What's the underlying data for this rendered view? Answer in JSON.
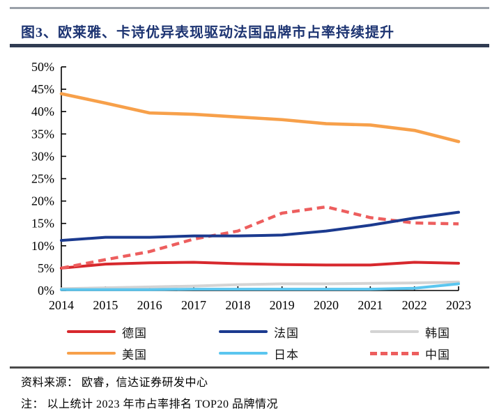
{
  "header": {
    "title": "图3、欧莱雅、卡诗优异表现驱动法国品牌市占率持续提升"
  },
  "footer": {
    "source": "资料来源：  欧睿，信达证券研发中心",
    "note": "注：  以上统计 2023 年市占率排名 TOP20 品牌情况"
  },
  "colors": {
    "title_navy": "#1d3472",
    "axis_black": "#000000",
    "germany_red": "#d7282d",
    "france_navy": "#1b3a8f",
    "korea_gray": "#d4d4d4",
    "usa_orange": "#f7a04a",
    "japan_lightblue": "#5bc6ef",
    "china_salmon": "#ed5e5e"
  },
  "chart_data": {
    "type": "line",
    "title": "图3、欧莱雅、卡诗优异表现驱动法国品牌市占率持续提升",
    "xlabel": "",
    "ylabel": "",
    "ylim": [
      0,
      50
    ],
    "ytick_step": 5,
    "yticks": [
      "0%",
      "5%",
      "10%",
      "15%",
      "20%",
      "25%",
      "30%",
      "35%",
      "40%",
      "45%",
      "50%"
    ],
    "grid": false,
    "legend_position": "bottom",
    "categories": [
      "2014",
      "2015",
      "2016",
      "2017",
      "2018",
      "2019",
      "2020",
      "2021",
      "2022",
      "2023"
    ],
    "series": [
      {
        "key": "germany",
        "name": "德国",
        "color": "#d7282d",
        "style": "solid",
        "values": [
          5.0,
          5.9,
          6.2,
          6.3,
          6.0,
          5.8,
          5.7,
          5.7,
          6.3,
          6.1
        ]
      },
      {
        "key": "france",
        "name": "法国",
        "color": "#1b3a8f",
        "style": "solid",
        "values": [
          11.2,
          11.9,
          11.9,
          12.2,
          12.2,
          12.4,
          13.3,
          14.6,
          16.2,
          17.5
        ]
      },
      {
        "key": "korea",
        "name": "韩国",
        "color": "#d4d4d4",
        "style": "solid",
        "values": [
          0.4,
          0.6,
          0.8,
          1.0,
          1.3,
          1.5,
          1.5,
          1.6,
          1.7,
          1.9
        ]
      },
      {
        "key": "usa",
        "name": "美国",
        "color": "#f7a04a",
        "style": "solid",
        "values": [
          44.0,
          41.9,
          39.7,
          39.4,
          38.8,
          38.2,
          37.3,
          37.0,
          35.8,
          33.3
        ]
      },
      {
        "key": "japan",
        "name": "日本",
        "color": "#5bc6ef",
        "style": "solid",
        "values": [
          0.2,
          0.2,
          0.2,
          0.3,
          0.3,
          0.3,
          0.3,
          0.3,
          0.5,
          1.5
        ]
      },
      {
        "key": "china",
        "name": "中国",
        "color": "#ed5e5e",
        "style": "dashed",
        "values": [
          5.0,
          6.9,
          8.7,
          11.5,
          13.3,
          17.3,
          18.7,
          16.3,
          15.1,
          14.9
        ]
      }
    ],
    "draw_order": [
      2,
      3,
      0,
      5,
      1,
      4
    ]
  }
}
